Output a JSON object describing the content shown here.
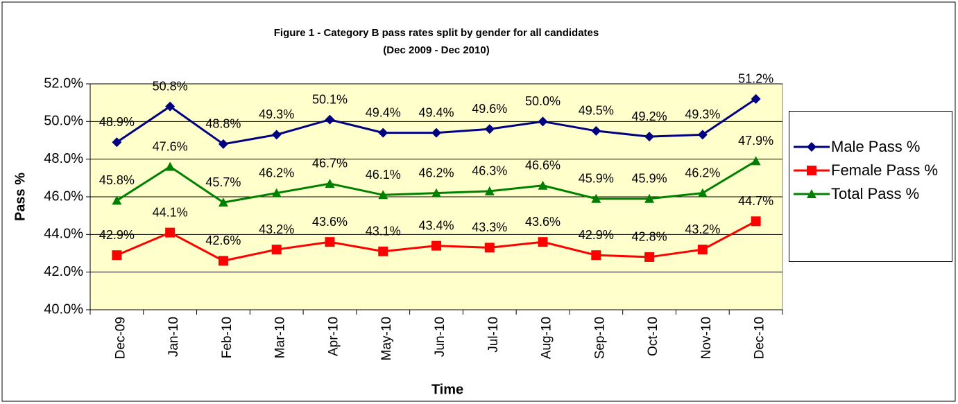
{
  "chart_data": {
    "type": "line",
    "title": "Figure 1 - Category B pass rates split by gender for all candidates",
    "subtitle": "(Dec 2009 - Dec 2010)",
    "x_label": "Time",
    "y_label": "Pass %",
    "categories": [
      "Dec-09",
      "Jan-10",
      "Feb-10",
      "Mar-10",
      "Apr-10",
      "May-10",
      "Jun-10",
      "Jul-10",
      "Aug-10",
      "Sep-10",
      "Oct-10",
      "Nov-10",
      "Dec-10"
    ],
    "series": [
      {
        "name": "Male Pass %",
        "color": "#000080",
        "marker": "diamond",
        "values": [
          48.9,
          50.8,
          48.8,
          49.3,
          50.1,
          49.4,
          49.4,
          49.6,
          50.0,
          49.5,
          49.2,
          49.3,
          51.2
        ],
        "value_labels": [
          "48.9%",
          "50.8%",
          "48.8%",
          "49.3%",
          "50.1%",
          "49.4%",
          "49.4%",
          "49.6%",
          "50.0%",
          "49.5%",
          "49.2%",
          "49.3%",
          "51.2%"
        ]
      },
      {
        "name": "Female Pass %",
        "color": "#ff0000",
        "marker": "square",
        "values": [
          42.9,
          44.1,
          42.6,
          43.2,
          43.6,
          43.1,
          43.4,
          43.3,
          43.6,
          42.9,
          42.8,
          43.2,
          44.7
        ],
        "value_labels": [
          "42.9%",
          "44.1%",
          "42.6%",
          "43.2%",
          "43.6%",
          "43.1%",
          "43.4%",
          "43.3%",
          "43.6%",
          "42.9%",
          "42.8%",
          "43.2%",
          "44.7%"
        ]
      },
      {
        "name": "Total Pass %",
        "color": "#008000",
        "marker": "triangle",
        "values": [
          45.8,
          47.6,
          45.7,
          46.2,
          46.7,
          46.1,
          46.2,
          46.3,
          46.6,
          45.9,
          45.9,
          46.2,
          47.9
        ],
        "value_labels": [
          "45.8%",
          "47.6%",
          "45.7%",
          "46.2%",
          "46.7%",
          "46.1%",
          "46.2%",
          "46.3%",
          "46.6%",
          "45.9%",
          "45.9%",
          "46.2%",
          "47.9%"
        ]
      }
    ],
    "ylim": [
      40,
      52
    ],
    "yticks": [
      {
        "value": 40,
        "label": "40.0%"
      },
      {
        "value": 42,
        "label": "42.0%"
      },
      {
        "value": 44,
        "label": "44.0%"
      },
      {
        "value": 46,
        "label": "46.0%"
      },
      {
        "value": 48,
        "label": "48.0%"
      },
      {
        "value": 50,
        "label": "50.0%"
      },
      {
        "value": 52,
        "label": "52.0%"
      }
    ],
    "grid": true,
    "legend": "right",
    "plot_background": "#ffffcc"
  }
}
